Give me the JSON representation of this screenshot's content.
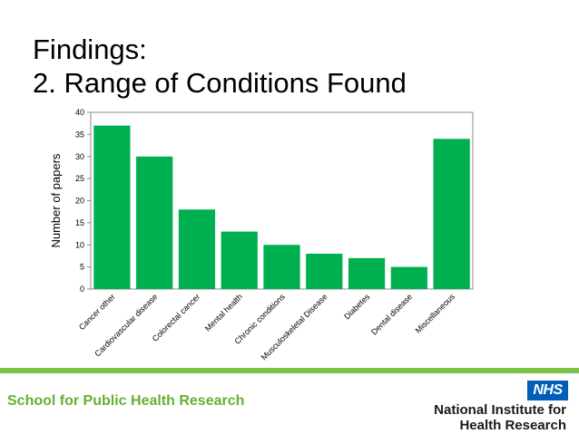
{
  "slide": {
    "title_line1": "Findings:",
    "title_line2": "2. Range of Conditions Found"
  },
  "chart_data": {
    "type": "bar",
    "categories": [
      "Cancer other",
      "Cardiovascular disease",
      "Colorectal cancer",
      "Mental health",
      "Chronic conditions",
      "Musculoskeletal Disease",
      "Diabetes",
      "Dental disease",
      "Miscellaneous"
    ],
    "values": [
      37,
      30,
      18,
      13,
      10,
      8,
      7,
      5,
      34
    ],
    "title": "",
    "xlabel": "",
    "ylabel": "Number of papers",
    "ylim": [
      0,
      40
    ],
    "yticks": [
      0,
      5,
      10,
      15,
      20,
      25,
      30,
      35,
      40
    ],
    "grid": false,
    "bar_color": "#00b050"
  },
  "footer": {
    "school_name": "School for Public Health Research",
    "school_color": "#66b032",
    "bar_color": "#7cc243",
    "nhs_logo_text": "NHS",
    "nhs_color": "#005eb8",
    "nihr_line1": "National Institute for",
    "nihr_line2": "Health Research"
  }
}
